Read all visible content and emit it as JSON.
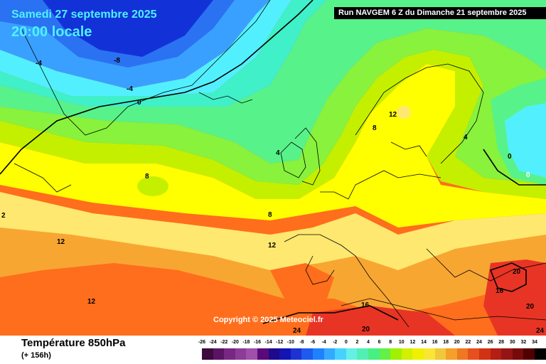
{
  "header": {
    "date": "Samedi 27 septembre 2025",
    "time": "20:00 locale",
    "run": "Run NAVGEM 6 Z du Dimanche 21 septembre 2025"
  },
  "copyright": "Copyright © 2025 Meteociel.fr",
  "footer": {
    "title": "Température 850hPa",
    "subtitle": "(+ 156h)"
  },
  "scale": {
    "ticks": [
      "-26",
      "-24",
      "-22",
      "-20",
      "-18",
      "-16",
      "-14",
      "-12",
      "-10",
      "-8",
      "-6",
      "-4",
      "-2",
      "0",
      "2",
      "4",
      "6",
      "8",
      "10",
      "12",
      "14",
      "16",
      "18",
      "20",
      "22",
      "24",
      "26",
      "28",
      "30",
      "32",
      "34"
    ],
    "colors": [
      "#3c0a3c",
      "#5a1464",
      "#782882",
      "#8c3c96",
      "#a050aa",
      "#5a0a78",
      "#1e0a8c",
      "#1414b4",
      "#1e32d2",
      "#1e5af0",
      "#1e82ff",
      "#32aaff",
      "#46d2ff",
      "#64f0e6",
      "#50f0b4",
      "#46f082",
      "#64f046",
      "#a0f000",
      "#d2f000",
      "#f0f000",
      "#fae632",
      "#f0c83c",
      "#f5a028",
      "#f07820",
      "#e6501e",
      "#d23214",
      "#b41e14",
      "#961414",
      "#780a0a",
      "#500000",
      "#000000"
    ]
  },
  "map": {
    "labels": [
      "-4",
      "-8",
      "-4",
      "0",
      "4",
      "8",
      "12",
      "8",
      "12",
      "4",
      "0",
      "0",
      "8",
      "12",
      "12",
      "20",
      "16",
      "16",
      "20",
      "20",
      "24",
      "24",
      "2"
    ]
  },
  "colors": {
    "deep_blue": "#1232d8",
    "blue": "#2a72f2",
    "light_blue": "#3aa0ff",
    "cyan": "#52f0ff",
    "aqua": "#3ff0c8",
    "light_green": "#58f28a",
    "green": "#88f23c",
    "yellow_green": "#c4f000",
    "yellow": "#ffff00",
    "light_yellow": "#ffe870",
    "orange": "#f8a632",
    "deep_orange": "#ff6e1c",
    "red": "#e83424"
  }
}
